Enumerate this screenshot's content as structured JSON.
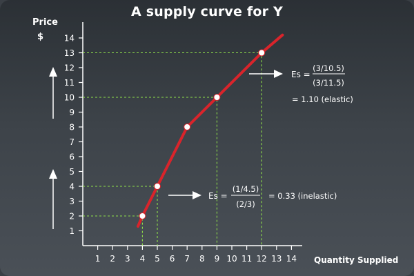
{
  "chart_data": {
    "type": "line",
    "title": "A supply curve for Y",
    "ylabel_line1": "Price",
    "ylabel_line2": "$",
    "xlabel": "Quantity Supplied",
    "xlim": [
      0,
      14
    ],
    "ylim": [
      0,
      14
    ],
    "x_ticks": [
      1,
      2,
      3,
      4,
      5,
      6,
      7,
      8,
      9,
      10,
      11,
      12,
      13,
      14
    ],
    "y_ticks": [
      1,
      2,
      3,
      4,
      5,
      6,
      7,
      8,
      9,
      10,
      11,
      12,
      13,
      14
    ],
    "grid": false,
    "line_color": "#d9242b",
    "guide_color": "#8fe04a",
    "series": [
      {
        "x": [
          3.7,
          4,
          5,
          7,
          9,
          12,
          13.4
        ],
        "y": [
          1.3,
          2,
          4,
          8,
          10,
          13,
          14.2
        ]
      }
    ],
    "points": [
      {
        "x": 4,
        "y": 2
      },
      {
        "x": 5,
        "y": 4
      },
      {
        "x": 7,
        "y": 8
      },
      {
        "x": 9,
        "y": 10
      },
      {
        "x": 12,
        "y": 13
      }
    ],
    "guides": [
      {
        "x": 4,
        "y": 2
      },
      {
        "x": 5,
        "y": 4
      },
      {
        "x": 9,
        "y": 10
      },
      {
        "x": 12,
        "y": 13
      }
    ],
    "annotations": {
      "upper": {
        "es_label": "Es =",
        "numerator": "(3/10.5)",
        "denominator": "(3/11.5)",
        "result": "= 1.10 (elastic)"
      },
      "lower": {
        "es_label": "Es =",
        "numerator": "(1/4.5)",
        "denominator": "(2/3)",
        "result": "= 0.33 (inelastic)"
      }
    }
  }
}
